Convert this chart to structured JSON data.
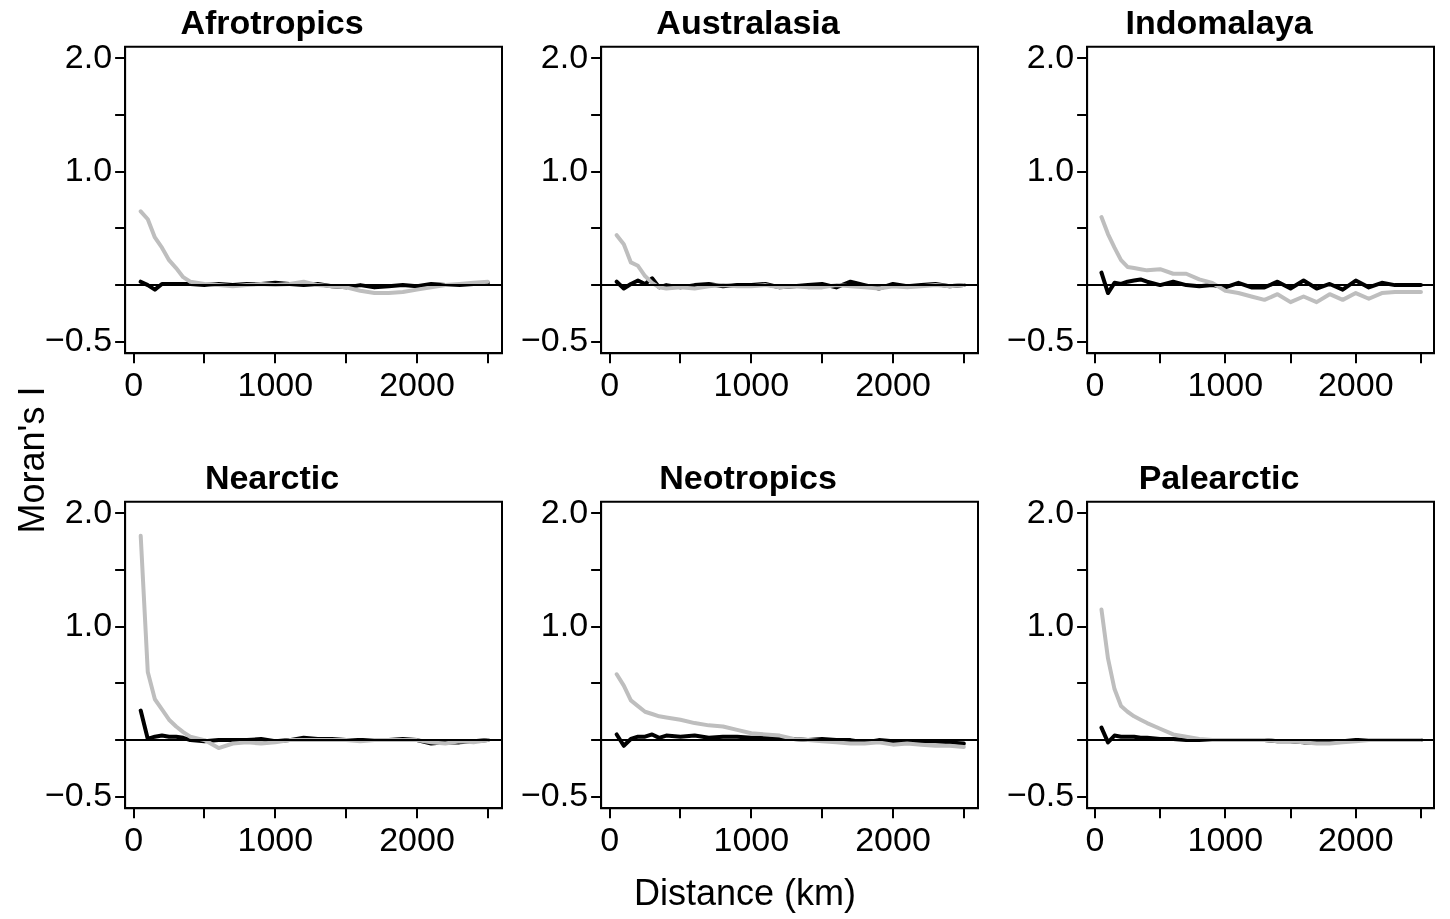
{
  "chart_data": [
    {
      "type": "line",
      "title": "Afrotropics",
      "ylabel": "Moran's I",
      "x": [
        50,
        100,
        150,
        200,
        250,
        300,
        350,
        400,
        500,
        600,
        700,
        800,
        900,
        1000,
        1100,
        1200,
        1300,
        1400,
        1500,
        1600,
        1700,
        1800,
        1900,
        2000,
        2100,
        2200,
        2300,
        2400,
        2500
      ],
      "xlim": [
        -60,
        2600
      ],
      "xticks": [
        0,
        {
          "value": 500,
          "label": null
        },
        1000,
        {
          "value": 1500,
          "label": null
        },
        2000,
        {
          "value": 2500,
          "label": null
        }
      ],
      "ylim": [
        -0.6,
        2.1
      ],
      "yticks": [
        {
          "value": -0.5,
          "label": "−0.5"
        },
        {
          "value": 0,
          "label": null
        },
        {
          "value": 0.5,
          "label": null
        },
        {
          "value": 1,
          "label": "1.0"
        },
        {
          "value": 1.5,
          "label": null
        },
        {
          "value": 2,
          "label": "2.0"
        }
      ],
      "ref_lines": [
        {
          "axis": "y",
          "value": 0,
          "color": "#000000"
        }
      ],
      "legend": false,
      "series": [
        {
          "color": "#bebebe",
          "values": [
            0.65,
            0.58,
            0.42,
            0.33,
            0.22,
            0.15,
            0.07,
            0.03,
            0.01,
            0,
            -0.01,
            0,
            0.01,
            0,
            0.01,
            0.03,
            0,
            -0.01,
            -0.02,
            -0.05,
            -0.07,
            -0.07,
            -0.06,
            -0.04,
            -0.02,
            0,
            0.01,
            0.02,
            0.03
          ]
        },
        {
          "color": "#000000",
          "values": [
            0.03,
            0,
            -0.04,
            0.01,
            0.01,
            0.01,
            0.01,
            0.01,
            0,
            0.01,
            0,
            0.01,
            0.01,
            0.02,
            0.01,
            0,
            0.01,
            -0.01,
            -0.02,
            0,
            -0.02,
            -0.01,
            0,
            -0.01,
            0.01,
            0,
            0,
            0.01,
            0.02
          ]
        }
      ]
    },
    {
      "type": "line",
      "title": "Australasia",
      "x": [
        50,
        100,
        150,
        200,
        250,
        300,
        350,
        400,
        500,
        600,
        700,
        800,
        900,
        1000,
        1100,
        1200,
        1300,
        1400,
        1500,
        1600,
        1700,
        1800,
        1900,
        2000,
        2100,
        2200,
        2300,
        2400,
        2500
      ],
      "xlim": [
        -60,
        2600
      ],
      "xticks": [
        0,
        {
          "value": 500,
          "label": null
        },
        1000,
        {
          "value": 1500,
          "label": null
        },
        2000,
        {
          "value": 2500,
          "label": null
        }
      ],
      "ylim": [
        -0.6,
        2.1
      ],
      "yticks": [
        {
          "value": -0.5,
          "label": "−0.5"
        },
        {
          "value": 0,
          "label": null
        },
        {
          "value": 0.5,
          "label": null
        },
        {
          "value": 1,
          "label": "1.0"
        },
        {
          "value": 1.5,
          "label": null
        },
        {
          "value": 2,
          "label": "2.0"
        }
      ],
      "ref_lines": [
        {
          "axis": "y",
          "value": 0,
          "color": "#000000"
        }
      ],
      "legend": false,
      "series": [
        {
          "color": "#bebebe",
          "values": [
            0.44,
            0.36,
            0.2,
            0.17,
            0.08,
            0.02,
            -0.02,
            -0.03,
            -0.02,
            -0.03,
            -0.01,
            0,
            -0.01,
            -0.01,
            0,
            -0.02,
            -0.01,
            -0.02,
            -0.02,
            0,
            -0.01,
            -0.02,
            -0.03,
            -0.01,
            -0.02,
            -0.01,
            0,
            -0.01,
            0
          ]
        },
        {
          "color": "#000000",
          "values": [
            0.03,
            -0.03,
            0.01,
            0.04,
            0.01,
            0.06,
            -0.02,
            0,
            -0.02,
            0,
            0.01,
            -0.01,
            0,
            0,
            0.01,
            -0.02,
            -0.01,
            0,
            0.01,
            -0.02,
            0.03,
            0,
            -0.03,
            0.01,
            -0.01,
            0,
            0.01,
            -0.01,
            0
          ]
        }
      ]
    },
    {
      "type": "line",
      "title": "Indomalaya",
      "x": [
        50,
        100,
        150,
        200,
        250,
        300,
        350,
        400,
        500,
        600,
        700,
        800,
        900,
        1000,
        1100,
        1200,
        1300,
        1400,
        1500,
        1600,
        1700,
        1800,
        1900,
        2000,
        2100,
        2200,
        2300,
        2400,
        2500
      ],
      "xlim": [
        -60,
        2600
      ],
      "xticks": [
        0,
        {
          "value": 500,
          "label": null
        },
        1000,
        {
          "value": 1500,
          "label": null
        },
        2000,
        {
          "value": 2500,
          "label": null
        }
      ],
      "ylim": [
        -0.6,
        2.1
      ],
      "yticks": [
        {
          "value": -0.5,
          "label": "−0.5"
        },
        {
          "value": 0,
          "label": null
        },
        {
          "value": 0.5,
          "label": null
        },
        {
          "value": 1,
          "label": "1.0"
        },
        {
          "value": 1.5,
          "label": null
        },
        {
          "value": 2,
          "label": "2.0"
        }
      ],
      "ref_lines": [
        {
          "axis": "y",
          "value": 0,
          "color": "#000000"
        }
      ],
      "legend": false,
      "series": [
        {
          "color": "#bebebe",
          "values": [
            0.6,
            0.45,
            0.33,
            0.22,
            0.16,
            0.15,
            0.14,
            0.13,
            0.14,
            0.1,
            0.1,
            0.05,
            0.02,
            -0.05,
            -0.07,
            -0.1,
            -0.13,
            -0.08,
            -0.15,
            -0.1,
            -0.15,
            -0.08,
            -0.13,
            -0.07,
            -0.12,
            -0.07,
            -0.06,
            -0.06,
            -0.06
          ]
        },
        {
          "color": "#000000",
          "values": [
            0.11,
            -0.07,
            0.02,
            0.01,
            0.03,
            0.04,
            0.05,
            0.03,
            0,
            0.03,
            0,
            -0.01,
            0,
            -0.02,
            0.02,
            -0.02,
            -0.02,
            0.03,
            -0.03,
            0.04,
            -0.03,
            0.01,
            -0.04,
            0.04,
            -0.02,
            0.02,
            0,
            0,
            0
          ]
        }
      ]
    },
    {
      "type": "line",
      "title": "Nearctic",
      "x": [
        50,
        100,
        150,
        200,
        250,
        300,
        350,
        400,
        500,
        600,
        700,
        800,
        900,
        1000,
        1100,
        1200,
        1300,
        1400,
        1500,
        1600,
        1700,
        1800,
        1900,
        2000,
        2100,
        2200,
        2300,
        2400,
        2500
      ],
      "xlim": [
        -60,
        2600
      ],
      "xticks": [
        0,
        {
          "value": 500,
          "label": null
        },
        1000,
        {
          "value": 1500,
          "label": null
        },
        2000,
        {
          "value": 2500,
          "label": null
        }
      ],
      "ylim": [
        -0.6,
        2.1
      ],
      "yticks": [
        {
          "value": -0.5,
          "label": "−0.5"
        },
        {
          "value": 0,
          "label": null
        },
        {
          "value": 0.5,
          "label": null
        },
        {
          "value": 1,
          "label": "1.0"
        },
        {
          "value": 1.5,
          "label": null
        },
        {
          "value": 2,
          "label": "2.0"
        }
      ],
      "ref_lines": [
        {
          "axis": "y",
          "value": 0,
          "color": "#000000"
        }
      ],
      "legend": false,
      "series": [
        {
          "color": "#bebebe",
          "values": [
            1.8,
            0.6,
            0.36,
            0.27,
            0.18,
            0.12,
            0.07,
            0.03,
            0,
            -0.07,
            -0.03,
            -0.02,
            -0.03,
            -0.02,
            0,
            0,
            0,
            0,
            0,
            -0.01,
            0,
            0,
            0,
            0,
            -0.02,
            -0.03,
            -0.01,
            -0.02,
            0
          ]
        },
        {
          "color": "#000000",
          "values": [
            0.26,
            0.01,
            0.03,
            0.04,
            0.03,
            0.03,
            0.02,
            0,
            -0.01,
            0,
            0,
            0,
            0.01,
            -0.01,
            0,
            0.02,
            0.01,
            0.01,
            0,
            0,
            0,
            0,
            0.01,
            0,
            -0.03,
            -0.02,
            -0.02,
            -0.01,
            0
          ]
        }
      ]
    },
    {
      "type": "line",
      "title": "Neotropics",
      "xlabel": "Distance (km)",
      "x": [
        50,
        100,
        150,
        200,
        250,
        300,
        350,
        400,
        500,
        600,
        700,
        800,
        900,
        1000,
        1100,
        1200,
        1300,
        1400,
        1500,
        1600,
        1700,
        1800,
        1900,
        2000,
        2100,
        2200,
        2300,
        2400,
        2500
      ],
      "xlim": [
        -60,
        2600
      ],
      "xticks": [
        0,
        {
          "value": 500,
          "label": null
        },
        1000,
        {
          "value": 1500,
          "label": null
        },
        2000,
        {
          "value": 2500,
          "label": null
        }
      ],
      "ylim": [
        -0.6,
        2.1
      ],
      "yticks": [
        {
          "value": -0.5,
          "label": "−0.5"
        },
        {
          "value": 0,
          "label": null
        },
        {
          "value": 0.5,
          "label": null
        },
        {
          "value": 1,
          "label": "1.0"
        },
        {
          "value": 1.5,
          "label": null
        },
        {
          "value": 2,
          "label": "2.0"
        }
      ],
      "ref_lines": [
        {
          "axis": "y",
          "value": 0,
          "color": "#000000"
        }
      ],
      "legend": false,
      "series": [
        {
          "color": "#bebebe",
          "values": [
            0.58,
            0.48,
            0.35,
            0.3,
            0.25,
            0.23,
            0.21,
            0.2,
            0.18,
            0.15,
            0.13,
            0.12,
            0.09,
            0.06,
            0.05,
            0.04,
            0.01,
            0,
            -0.01,
            -0.02,
            -0.03,
            -0.03,
            -0.02,
            -0.04,
            -0.03,
            -0.04,
            -0.05,
            -0.05,
            -0.06
          ]
        },
        {
          "color": "#000000",
          "values": [
            0.05,
            -0.05,
            0.01,
            0.03,
            0.03,
            0.05,
            0.02,
            0.04,
            0.03,
            0.04,
            0.02,
            0.03,
            0.03,
            0.02,
            0.02,
            0.01,
            0.01,
            0,
            0.01,
            0,
            0,
            -0.02,
            0,
            -0.01,
            -0.02,
            -0.01,
            -0.01,
            -0.02,
            -0.03
          ]
        }
      ]
    },
    {
      "type": "line",
      "title": "Palearctic",
      "x": [
        50,
        100,
        150,
        200,
        250,
        300,
        350,
        400,
        500,
        600,
        700,
        800,
        900,
        1000,
        1100,
        1200,
        1300,
        1400,
        1500,
        1600,
        1700,
        1800,
        1900,
        2000,
        2100,
        2200,
        2300,
        2400,
        2500
      ],
      "xlim": [
        -60,
        2600
      ],
      "xticks": [
        0,
        {
          "value": 500,
          "label": null
        },
        1000,
        {
          "value": 1500,
          "label": null
        },
        2000,
        {
          "value": 2500,
          "label": null
        }
      ],
      "ylim": [
        -0.6,
        2.1
      ],
      "yticks": [
        {
          "value": -0.5,
          "label": "−0.5"
        },
        {
          "value": 0,
          "label": null
        },
        {
          "value": 0.5,
          "label": null
        },
        {
          "value": 1,
          "label": "1.0"
        },
        {
          "value": 1.5,
          "label": null
        },
        {
          "value": 2,
          "label": "2.0"
        }
      ],
      "ref_lines": [
        {
          "axis": "y",
          "value": 0,
          "color": "#000000"
        }
      ],
      "legend": false,
      "series": [
        {
          "color": "#bebebe",
          "values": [
            1.15,
            0.72,
            0.45,
            0.3,
            0.25,
            0.21,
            0.18,
            0.15,
            0.1,
            0.05,
            0.03,
            0.01,
            0,
            0,
            0,
            0,
            0,
            -0.01,
            -0.01,
            -0.02,
            -0.03,
            -0.03,
            -0.02,
            -0.01,
            0,
            0,
            0,
            0,
            0
          ]
        },
        {
          "color": "#000000",
          "values": [
            0.11,
            -0.02,
            0.04,
            0.03,
            0.03,
            0.03,
            0.02,
            0.02,
            0.01,
            0.01,
            0,
            0,
            0,
            0,
            0,
            0,
            0,
            -0.01,
            -0.01,
            -0.02,
            -0.02,
            -0.01,
            -0.01,
            0,
            0,
            0,
            0,
            0,
            0
          ]
        }
      ]
    }
  ]
}
